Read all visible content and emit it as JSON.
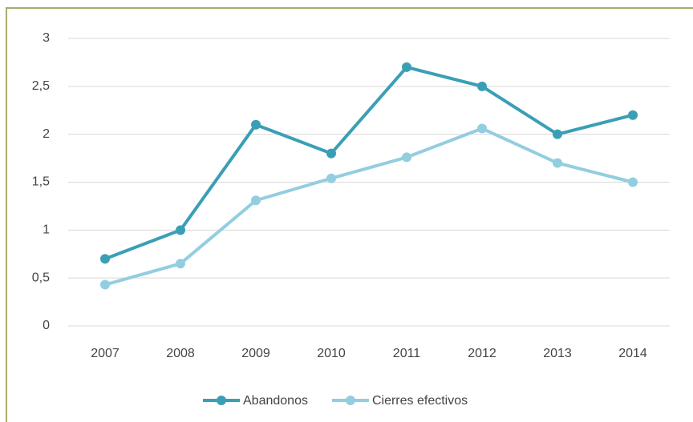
{
  "chart_data": {
    "type": "line",
    "categories": [
      "2007",
      "2008",
      "2009",
      "2010",
      "2011",
      "2012",
      "2013",
      "2014"
    ],
    "series": [
      {
        "name": "Abandonos",
        "color": "#3a9fb6",
        "values": [
          0.7,
          1.0,
          2.1,
          1.8,
          2.7,
          2.5,
          2.0,
          2.2
        ]
      },
      {
        "name": "Cierres efectivos",
        "color": "#93cde0",
        "values": [
          0.43,
          0.65,
          1.31,
          1.54,
          1.76,
          2.06,
          1.7,
          1.5
        ]
      }
    ],
    "ylim": [
      0,
      3
    ],
    "yticks": [
      0,
      {
        "value": 0.5,
        "label": "0,5"
      },
      1,
      {
        "value": 1.5,
        "label": "1,5"
      },
      2,
      {
        "value": 2.5,
        "label": "2,5"
      },
      3
    ],
    "grid": true,
    "legend": "bottom"
  }
}
